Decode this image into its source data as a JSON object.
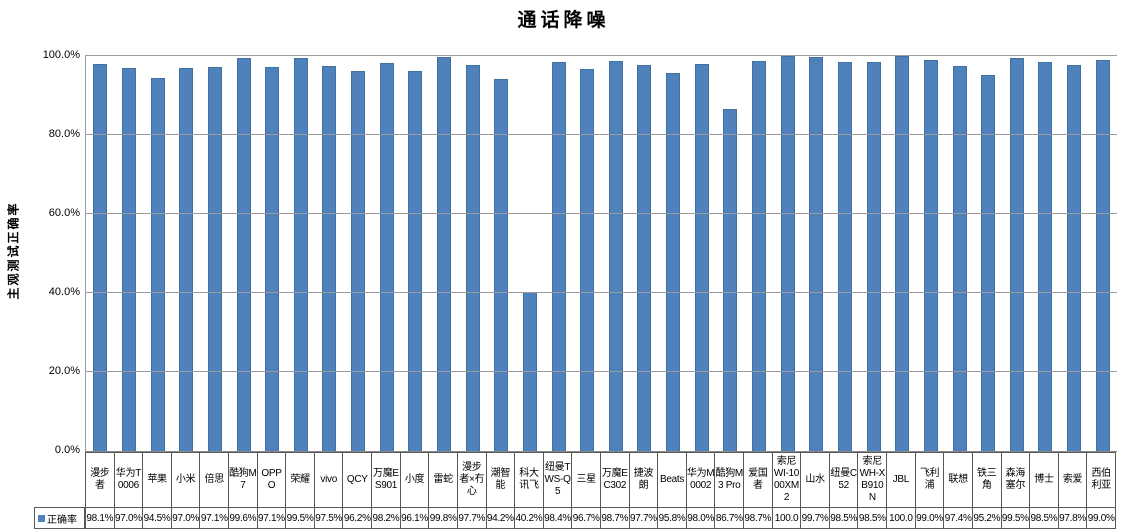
{
  "title": "通话降噪",
  "y_axis": {
    "label": "主观测试正确率",
    "ticks": [
      "100.0%",
      "80.0%",
      "60.0%",
      "40.0%",
      "20.0%",
      "0.0%"
    ]
  },
  "legend": {
    "label": "正确率"
  },
  "colors": {
    "bar": "#4F81BD",
    "gridline": "#9C9C9C",
    "table_border": "#595959"
  },
  "chart_data": {
    "type": "bar",
    "title": "通话降噪",
    "ylabel": "主观测试正确率",
    "ylim": [
      0,
      100
    ],
    "y_tick_step": 20,
    "grid": true,
    "legend_position": "bottom-table",
    "series_name": "正确率",
    "categories": [
      "漫步者",
      "华为T0006",
      "苹果",
      "小米",
      "倍思",
      "酷狗M7",
      "OPPO",
      "荣耀",
      "vivo",
      "QCY",
      "万魔ES901",
      "小度",
      "雷蛇",
      "漫步者×冇心",
      "潮智能",
      "科大讯飞",
      "纽曼TWS-Q5",
      "三星",
      "万魔EC302",
      "捷波朗",
      "Beats",
      "华为M0002",
      "酷狗M3 Pro",
      "爱国者",
      "索尼WI-1000XM2",
      "山水",
      "纽曼C52",
      "索尼WH-XB910N",
      "JBL",
      "飞利浦",
      "联想",
      "铁三角",
      "森海塞尔",
      "博士",
      "索爱",
      "西伯利亚"
    ],
    "values": [
      98.1,
      97.0,
      94.5,
      97.0,
      97.1,
      99.6,
      97.1,
      99.5,
      97.5,
      96.2,
      98.2,
      96.1,
      99.8,
      97.7,
      94.2,
      40.2,
      98.4,
      96.7,
      98.7,
      97.7,
      95.8,
      98.0,
      86.7,
      98.7,
      100.0,
      99.7,
      98.5,
      98.5,
      100.0,
      99.0,
      97.4,
      95.2,
      99.5,
      98.5,
      97.8,
      99.0
    ],
    "value_labels": [
      "98.1%",
      "97.0%",
      "94.5%",
      "97.0%",
      "97.1%",
      "99.6%",
      "97.1%",
      "99.5%",
      "97.5%",
      "96.2%",
      "98.2%",
      "96.1%",
      "99.8%",
      "97.7%",
      "94.2%",
      "40.2%",
      "98.4%",
      "96.7%",
      "98.7%",
      "97.7%",
      "95.8%",
      "98.0%",
      "86.7%",
      "98.7%",
      "100.0",
      "99.7%",
      "98.5%",
      "98.5%",
      "100.0",
      "99.0%",
      "97.4%",
      "95.2%",
      "99.5%",
      "98.5%",
      "97.8%",
      "99.0%"
    ]
  }
}
